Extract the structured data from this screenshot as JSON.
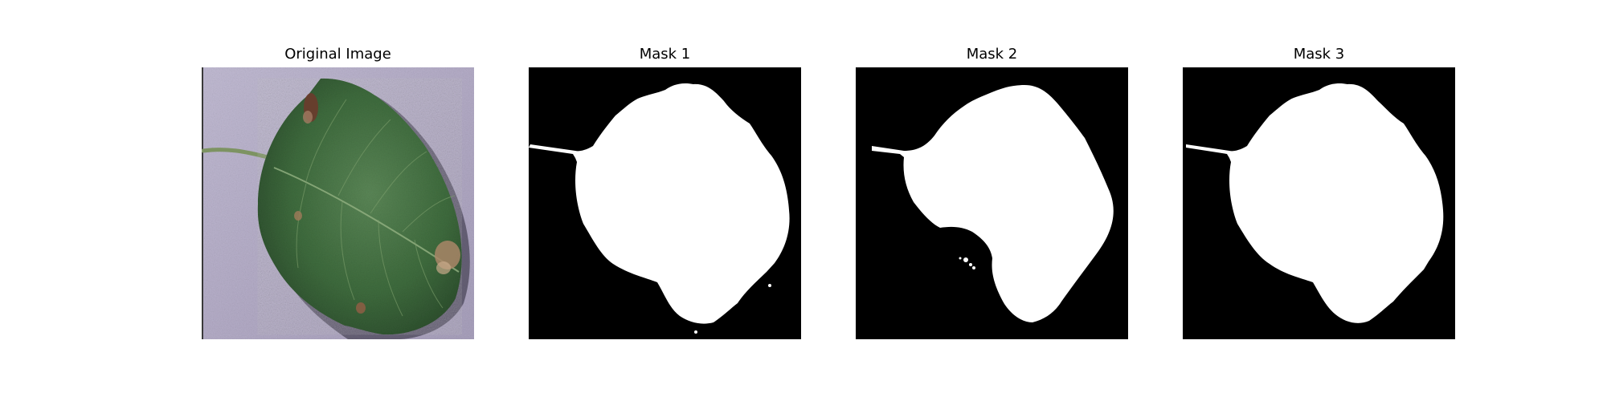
{
  "figure": {
    "panels": [
      {
        "title": "Original Image",
        "content": "leaf-photo"
      },
      {
        "title": "Mask 1",
        "content": "binary-mask"
      },
      {
        "title": "Mask 2",
        "content": "binary-mask"
      },
      {
        "title": "Mask 3",
        "content": "binary-mask"
      }
    ]
  },
  "colors": {
    "background": "#ffffff",
    "mask_background": "#000000",
    "mask_foreground": "#ffffff",
    "leaf_green": "#3f6b3f",
    "paper_lavender": "#b9b2cc"
  }
}
